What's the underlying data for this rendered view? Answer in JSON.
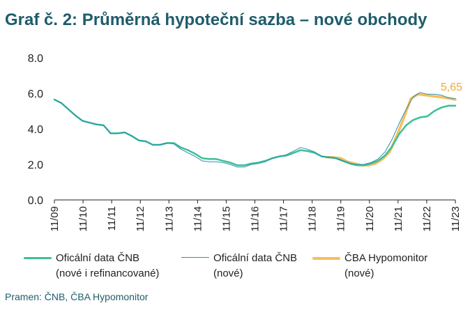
{
  "title": "Graf č. 2: Průměrná hypoteční sazba – nové obchody",
  "source": "Pramen: ČNB, ČBA Hypomonitor",
  "colors": {
    "title": "#1f5c6b",
    "series_cnb_all": "#3cbf96",
    "series_cnb_new": "#2a8fb0",
    "series_cba": "#f6be5c",
    "annotation": "#f0a830",
    "axis": "#222222"
  },
  "legend": [
    {
      "series": "cnb_all",
      "line1": "Oficální data ČNB",
      "line2": "(nové i refinancované)"
    },
    {
      "series": "cnb_new",
      "line1": "Oficální data ČNB",
      "line2": "(nové)"
    },
    {
      "series": "cba",
      "line1": "ČBA Hypomonitor",
      "line2": "(nové)"
    }
  ],
  "chart_data": {
    "type": "line",
    "title": "Graf č. 2: Průměrná hypoteční sazba – nové obchody",
    "ylim": [
      0,
      8
    ],
    "yticks": [
      "0.0",
      "2.0",
      "4.0",
      "6.0",
      "8.0"
    ],
    "xlim": [
      2009.667,
      2023.917
    ],
    "xticks": [
      "11/09",
      "11/10",
      "11/11",
      "11/12",
      "11/13",
      "11/14",
      "11/15",
      "11/16",
      "11/17",
      "11/18",
      "11/19",
      "11/20",
      "11/21",
      "11/22",
      "11/23"
    ],
    "grid": false,
    "legend_position": "bottom",
    "annotation": {
      "text": "5,65",
      "series": "cba"
    },
    "series": [
      {
        "id": "cnb_all",
        "x": [
          2009.667,
          2009.917,
          2010.167,
          2010.417,
          2010.667,
          2010.917,
          2011.167,
          2011.417,
          2011.667,
          2011.917,
          2012.167,
          2012.417,
          2012.667,
          2012.917,
          2013.167,
          2013.417,
          2013.667,
          2013.917,
          2014.167,
          2014.417,
          2014.667,
          2014.917,
          2015.167,
          2015.417,
          2015.667,
          2015.917,
          2016.167,
          2016.417,
          2016.667,
          2016.917,
          2017.167,
          2017.417,
          2017.667,
          2017.917,
          2018.167,
          2018.417,
          2018.667,
          2018.917,
          2019.167,
          2019.417,
          2019.667,
          2019.917,
          2020.167,
          2020.417,
          2020.667,
          2020.917,
          2021.167,
          2021.417,
          2021.667,
          2021.917,
          2022.167,
          2022.417,
          2022.667,
          2022.917,
          2023.167,
          2023.417,
          2023.667,
          2023.917
        ],
        "y": [
          5.65,
          5.45,
          5.1,
          4.75,
          4.45,
          4.35,
          4.25,
          4.2,
          3.75,
          3.75,
          3.8,
          3.6,
          3.35,
          3.3,
          3.1,
          3.1,
          3.2,
          3.2,
          2.95,
          2.8,
          2.6,
          2.35,
          2.3,
          2.3,
          2.2,
          2.1,
          1.95,
          1.95,
          2.05,
          2.1,
          2.2,
          2.35,
          2.45,
          2.5,
          2.65,
          2.8,
          2.75,
          2.65,
          2.45,
          2.4,
          2.35,
          2.2,
          2.05,
          1.95,
          1.95,
          2.05,
          2.2,
          2.5,
          3.0,
          3.7,
          4.2,
          4.5,
          4.65,
          4.7,
          5.0,
          5.2,
          5.3,
          5.3
        ]
      },
      {
        "id": "cnb_new",
        "x": [
          2009.667,
          2009.917,
          2010.167,
          2010.417,
          2010.667,
          2010.917,
          2011.167,
          2011.417,
          2011.667,
          2011.917,
          2012.167,
          2012.417,
          2012.667,
          2012.917,
          2013.167,
          2013.417,
          2013.667,
          2013.917,
          2014.167,
          2014.417,
          2014.667,
          2014.917,
          2015.167,
          2015.417,
          2015.667,
          2015.917,
          2016.167,
          2016.417,
          2016.667,
          2016.917,
          2017.167,
          2017.417,
          2017.667,
          2017.917,
          2018.167,
          2018.417,
          2018.667,
          2018.917,
          2019.167,
          2019.417,
          2019.667,
          2019.917,
          2020.167,
          2020.417,
          2020.667,
          2020.917,
          2021.167,
          2021.417,
          2021.667,
          2021.917,
          2022.167,
          2022.417,
          2022.667,
          2022.917,
          2023.167,
          2023.417,
          2023.667,
          2023.917
        ],
        "y": [
          5.65,
          5.45,
          5.1,
          4.75,
          4.45,
          4.35,
          4.25,
          4.2,
          3.75,
          3.75,
          3.8,
          3.6,
          3.35,
          3.3,
          3.1,
          3.1,
          3.2,
          3.15,
          2.85,
          2.65,
          2.45,
          2.2,
          2.15,
          2.15,
          2.1,
          2.0,
          1.85,
          1.85,
          2.0,
          2.05,
          2.15,
          2.35,
          2.45,
          2.55,
          2.75,
          2.95,
          2.85,
          2.7,
          2.45,
          2.4,
          2.35,
          2.2,
          2.05,
          2.0,
          2.0,
          2.1,
          2.3,
          2.7,
          3.4,
          4.3,
          5.1,
          5.8,
          6.05,
          5.95,
          5.95,
          5.9,
          5.75,
          5.7
        ]
      },
      {
        "id": "cba",
        "x": [
          2019.333,
          2019.583,
          2019.833,
          2020.083,
          2020.333,
          2020.583,
          2020.833,
          2021.083,
          2021.333,
          2021.583,
          2021.833,
          2022.083,
          2022.333,
          2022.583,
          2022.833,
          2023.083,
          2023.333,
          2023.583,
          2023.917
        ],
        "y": [
          2.4,
          2.4,
          2.35,
          2.15,
          2.05,
          1.95,
          1.95,
          2.05,
          2.3,
          2.7,
          3.6,
          4.6,
          5.7,
          5.95,
          5.9,
          5.85,
          5.8,
          5.75,
          5.65
        ]
      }
    ]
  }
}
